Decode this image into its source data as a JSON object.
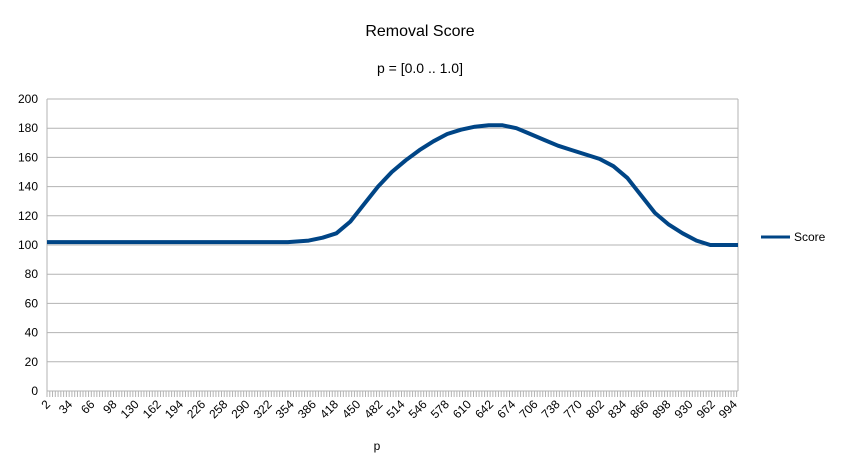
{
  "chart_data": {
    "type": "line",
    "title": "Removal Score",
    "subtitle": "p = [0.0 .. 1.0]",
    "xlabel": "p",
    "ylabel": "",
    "ylim": [
      0,
      200
    ],
    "yticks": [
      0,
      20,
      40,
      60,
      80,
      100,
      120,
      140,
      160,
      180,
      200
    ],
    "xlim": [
      2,
      1000
    ],
    "xtick_labels": [
      "2",
      "34",
      "66",
      "98",
      "130",
      "162",
      "194",
      "226",
      "258",
      "290",
      "322",
      "354",
      "386",
      "418",
      "450",
      "482",
      "514",
      "546",
      "578",
      "610",
      "642",
      "674",
      "706",
      "738",
      "770",
      "802",
      "834",
      "866",
      "898",
      "930",
      "962",
      "994"
    ],
    "grid": "horizontal",
    "legend_position": "right",
    "series": [
      {
        "name": "Score",
        "color": "#004586",
        "x": [
          2,
          100,
          200,
          300,
          350,
          380,
          400,
          420,
          440,
          460,
          480,
          500,
          520,
          540,
          560,
          580,
          600,
          620,
          640,
          660,
          680,
          700,
          720,
          740,
          760,
          780,
          800,
          820,
          840,
          860,
          880,
          900,
          920,
          940,
          960,
          980,
          1000
        ],
        "values": [
          102,
          102,
          102,
          102,
          102,
          103,
          105,
          108,
          116,
          128,
          140,
          150,
          158,
          165,
          171,
          176,
          179,
          181,
          182,
          182,
          180,
          176,
          172,
          168,
          165,
          162,
          159,
          154,
          146,
          134,
          122,
          114,
          108,
          103,
          100,
          100,
          100
        ]
      }
    ]
  }
}
